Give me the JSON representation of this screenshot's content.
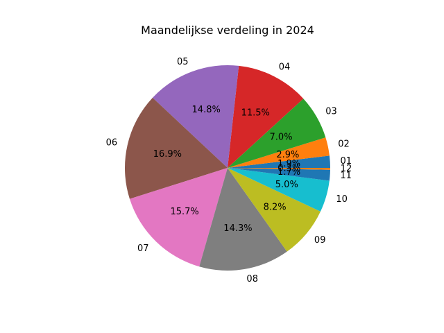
{
  "chart_data": {
    "type": "pie",
    "title": "Maandelijkse verdeling in 2024",
    "categories": [
      "01",
      "02",
      "03",
      "04",
      "05",
      "06",
      "07",
      "08",
      "09",
      "10",
      "11",
      "12"
    ],
    "values": [
      1.9,
      2.9,
      7.0,
      11.5,
      14.8,
      16.9,
      15.7,
      14.3,
      8.2,
      5.0,
      1.7,
      0.3
    ],
    "value_labels": [
      "1.9%",
      "2.9%",
      "7.0%",
      "11.5%",
      "14.8%",
      "16.9%",
      "15.7%",
      "14.3%",
      "8.2%",
      "5.0%",
      "1.7%",
      "0.3%"
    ],
    "colors": [
      "#1f77b4",
      "#ff7f0e",
      "#2ca02c",
      "#d62728",
      "#9467bd",
      "#8c564b",
      "#e377c2",
      "#7f7f7f",
      "#bcbd22",
      "#17becf",
      "#1f77b4",
      "#ff7f0e"
    ],
    "start_angle_deg": 0,
    "direction": "counterclockwise",
    "legend": "none"
  }
}
